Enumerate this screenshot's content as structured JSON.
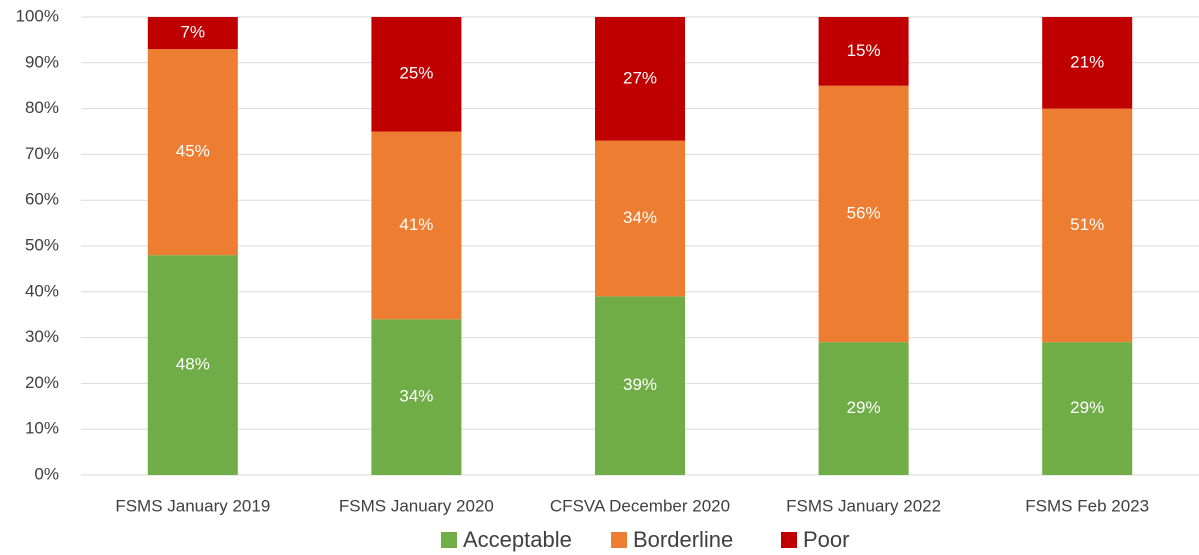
{
  "chart_data": {
    "type": "stacked_bar",
    "categories": [
      "FSMS January 2019",
      "FSMS January 2020",
      "CFSVA December 2020",
      "FSMS January 2022",
      "FSMS Feb 2023"
    ],
    "series": [
      {
        "name": "Acceptable",
        "color": "#70ad47",
        "values": [
          48,
          34,
          39,
          29,
          29
        ],
        "value_labels": [
          "48%",
          "34%",
          "39%",
          "29%",
          "29%"
        ]
      },
      {
        "name": "Borderline",
        "color": "#ed7d31",
        "values": [
          45,
          41,
          34,
          56,
          51
        ],
        "value_labels": [
          "45%",
          "41%",
          "34%",
          "56%",
          "51%"
        ]
      },
      {
        "name": "Poor",
        "color": "#c00000",
        "values": [
          7,
          25,
          27,
          15,
          21
        ],
        "value_labels": [
          "7%",
          "25%",
          "27%",
          "15%",
          "21%"
        ]
      }
    ],
    "ylim": [
      0,
      100
    ],
    "yticks": [
      {
        "value": 0,
        "label": "0%"
      },
      {
        "value": 10,
        "label": "10%"
      },
      {
        "value": 20,
        "label": "20%"
      },
      {
        "value": 30,
        "label": "30%"
      },
      {
        "value": 40,
        "label": "40%"
      },
      {
        "value": 50,
        "label": "50%"
      },
      {
        "value": 60,
        "label": "60%"
      },
      {
        "value": 70,
        "label": "70%"
      },
      {
        "value": 80,
        "label": "80%"
      },
      {
        "value": 90,
        "label": "90%"
      },
      {
        "value": 100,
        "label": "100%"
      }
    ],
    "grid": true,
    "legend": "bottom"
  }
}
